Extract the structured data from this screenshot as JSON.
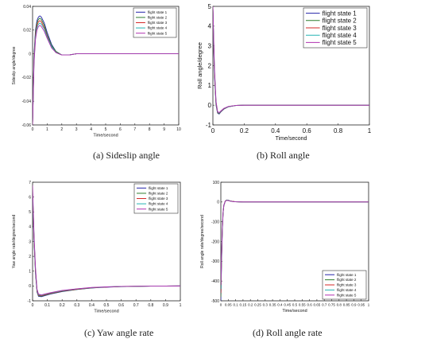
{
  "legend_entries": [
    "flight state 1",
    "flight state 2",
    "flight state 3",
    "flight state 4",
    "flight state 5"
  ],
  "series_colors": [
    "#2323a8",
    "#2e7d2e",
    "#d42a2a",
    "#25b3b3",
    "#b030b0"
  ],
  "captions": {
    "a": "(a) Sideslip angle",
    "b": "(b) Roll angle",
    "c": "(c) Yaw angle rate",
    "d": "(d) Roll angle rate"
  },
  "chart_data": [
    {
      "id": "a",
      "type": "line",
      "title": "",
      "xlabel": "Time/second",
      "ylabel": "Sideslip angle/degree",
      "xlim": [
        0,
        10
      ],
      "ylim": [
        -0.06,
        0.04
      ],
      "xticks": [
        "0",
        "1",
        "2",
        "3",
        "4",
        "5",
        "6",
        "7",
        "8",
        "9",
        "10"
      ],
      "yticks": [
        "-0.06",
        "-0.04",
        "-0.02",
        "0",
        "0.02",
        "0.04"
      ],
      "legend_position": "top-right",
      "grid": false,
      "series": [
        {
          "name": "flight state 1",
          "x": [
            0,
            0.1,
            0.2,
            0.3,
            0.4,
            0.5,
            0.6,
            0.8,
            1.0,
            1.3,
            1.6,
            2.0,
            2.5,
            3,
            4,
            6,
            8,
            10
          ],
          "y": [
            -0.06,
            0.0,
            0.02,
            0.028,
            0.031,
            0.032,
            0.031,
            0.026,
            0.018,
            0.008,
            0.002,
            -0.001,
            -0.001,
            0,
            0,
            0,
            0,
            0
          ]
        },
        {
          "name": "flight state 2",
          "x": [
            0,
            0.1,
            0.2,
            0.3,
            0.4,
            0.5,
            0.6,
            0.8,
            1.0,
            1.3,
            1.6,
            2.0,
            2.5,
            3,
            4,
            6,
            8,
            10
          ],
          "y": [
            -0.06,
            -0.002,
            0.018,
            0.026,
            0.029,
            0.03,
            0.029,
            0.024,
            0.016,
            0.007,
            0.002,
            -0.001,
            -0.001,
            0,
            0,
            0,
            0,
            0
          ]
        },
        {
          "name": "flight state 3",
          "x": [
            0,
            0.1,
            0.2,
            0.3,
            0.4,
            0.5,
            0.6,
            0.8,
            1.0,
            1.3,
            1.6,
            2.0,
            2.5,
            3,
            4,
            6,
            8,
            10
          ],
          "y": [
            -0.06,
            -0.004,
            0.016,
            0.024,
            0.027,
            0.028,
            0.027,
            0.022,
            0.015,
            0.006,
            0.001,
            -0.001,
            -0.001,
            0,
            0,
            0,
            0,
            0
          ]
        },
        {
          "name": "flight state 4",
          "x": [
            0,
            0.1,
            0.2,
            0.3,
            0.4,
            0.5,
            0.6,
            0.8,
            1.0,
            1.3,
            1.6,
            2.0,
            2.5,
            3,
            4,
            6,
            8,
            10
          ],
          "y": [
            -0.06,
            -0.006,
            0.014,
            0.022,
            0.025,
            0.026,
            0.025,
            0.021,
            0.014,
            0.006,
            0.001,
            -0.001,
            -0.001,
            0,
            0,
            0,
            0,
            0
          ]
        },
        {
          "name": "flight state 5",
          "x": [
            0,
            0.1,
            0.2,
            0.3,
            0.4,
            0.5,
            0.6,
            0.8,
            1.0,
            1.3,
            1.6,
            2.0,
            2.5,
            3,
            4,
            6,
            8,
            10
          ],
          "y": [
            -0.06,
            -0.008,
            0.012,
            0.02,
            0.023,
            0.024,
            0.023,
            0.019,
            0.013,
            0.005,
            0.001,
            -0.001,
            -0.001,
            0,
            0,
            0,
            0,
            0
          ]
        }
      ]
    },
    {
      "id": "b",
      "type": "line",
      "title": "",
      "xlabel": "Time/second",
      "ylabel": "Roll angle/degree",
      "xlim": [
        0,
        1
      ],
      "ylim": [
        -1,
        5
      ],
      "xticks": [
        "0",
        "0.2",
        "0.4",
        "0.6",
        "0.8",
        "1"
      ],
      "yticks": [
        "-1",
        "0",
        "1",
        "2",
        "3",
        "4",
        "5"
      ],
      "legend_position": "top-right",
      "grid": false,
      "series": [
        {
          "name": "flight state 1",
          "x": [
            0,
            0.005,
            0.01,
            0.02,
            0.03,
            0.04,
            0.05,
            0.07,
            0.1,
            0.15,
            0.2,
            0.3,
            0.5,
            1
          ],
          "y": [
            5,
            3.0,
            1.5,
            0.0,
            -0.4,
            -0.45,
            -0.35,
            -0.2,
            -0.08,
            -0.01,
            0,
            0,
            0,
            0
          ]
        },
        {
          "name": "flight state 2",
          "x": [
            0,
            0.005,
            0.01,
            0.02,
            0.03,
            0.04,
            0.05,
            0.07,
            0.1,
            0.15,
            0.2,
            0.3,
            0.5,
            1
          ],
          "y": [
            5,
            3.1,
            1.6,
            0.05,
            -0.38,
            -0.43,
            -0.33,
            -0.19,
            -0.08,
            -0.01,
            0,
            0,
            0,
            0
          ]
        },
        {
          "name": "flight state 3",
          "x": [
            0,
            0.005,
            0.01,
            0.02,
            0.03,
            0.04,
            0.05,
            0.07,
            0.1,
            0.15,
            0.2,
            0.3,
            0.5,
            1
          ],
          "y": [
            5,
            3.2,
            1.7,
            0.1,
            -0.36,
            -0.41,
            -0.32,
            -0.18,
            -0.07,
            -0.01,
            0,
            0,
            0,
            0
          ]
        },
        {
          "name": "flight state 4",
          "x": [
            0,
            0.005,
            0.01,
            0.02,
            0.03,
            0.04,
            0.05,
            0.07,
            0.1,
            0.15,
            0.2,
            0.3,
            0.5,
            1
          ],
          "y": [
            5,
            3.3,
            1.8,
            0.15,
            -0.34,
            -0.4,
            -0.31,
            -0.17,
            -0.07,
            -0.01,
            0,
            0,
            0,
            0
          ]
        },
        {
          "name": "flight state 5",
          "x": [
            0,
            0.005,
            0.01,
            0.02,
            0.03,
            0.04,
            0.05,
            0.07,
            0.1,
            0.15,
            0.2,
            0.3,
            0.5,
            1
          ],
          "y": [
            5,
            3.4,
            1.9,
            0.2,
            -0.32,
            -0.38,
            -0.3,
            -0.16,
            -0.06,
            -0.01,
            0,
            0,
            0,
            0
          ]
        }
      ]
    },
    {
      "id": "c",
      "type": "line",
      "title": "",
      "xlabel": "Time/second",
      "ylabel": "Yaw angle rate/degree/second",
      "xlim": [
        0,
        1
      ],
      "ylim": [
        -1,
        7
      ],
      "xticks": [
        "0",
        "0.1",
        "0.2",
        "0.3",
        "0.4",
        "0.5",
        "0.6",
        "0.7",
        "0.8",
        "0.9",
        "1"
      ],
      "yticks": [
        "-1",
        "0",
        "1",
        "2",
        "3",
        "4",
        "5",
        "6",
        "7"
      ],
      "legend_position": "top-right",
      "grid": false,
      "series": [
        {
          "name": "flight state 1",
          "x": [
            0,
            0.01,
            0.02,
            0.03,
            0.04,
            0.06,
            0.08,
            0.12,
            0.2,
            0.3,
            0.4,
            0.5,
            0.6,
            0.8,
            1
          ],
          "y": [
            6.2,
            3.0,
            0.8,
            -0.4,
            -0.7,
            -0.72,
            -0.66,
            -0.55,
            -0.38,
            -0.24,
            -0.14,
            -0.08,
            -0.04,
            -0.01,
            0
          ]
        },
        {
          "name": "flight state 2",
          "x": [
            0,
            0.01,
            0.02,
            0.03,
            0.04,
            0.06,
            0.08,
            0.12,
            0.2,
            0.3,
            0.4,
            0.5,
            0.6,
            0.8,
            1
          ],
          "y": [
            6.3,
            3.1,
            0.9,
            -0.35,
            -0.66,
            -0.69,
            -0.63,
            -0.52,
            -0.36,
            -0.23,
            -0.13,
            -0.07,
            -0.04,
            -0.01,
            0
          ]
        },
        {
          "name": "flight state 3",
          "x": [
            0,
            0.01,
            0.02,
            0.03,
            0.04,
            0.06,
            0.08,
            0.12,
            0.2,
            0.3,
            0.4,
            0.5,
            0.6,
            0.8,
            1
          ],
          "y": [
            6.4,
            3.2,
            1.0,
            -0.3,
            -0.62,
            -0.66,
            -0.6,
            -0.5,
            -0.34,
            -0.22,
            -0.12,
            -0.07,
            -0.03,
            -0.01,
            0
          ]
        },
        {
          "name": "flight state 4",
          "x": [
            0,
            0.01,
            0.02,
            0.03,
            0.04,
            0.06,
            0.08,
            0.12,
            0.2,
            0.3,
            0.4,
            0.5,
            0.6,
            0.8,
            1
          ],
          "y": [
            6.5,
            3.3,
            1.1,
            -0.25,
            -0.58,
            -0.63,
            -0.57,
            -0.47,
            -0.32,
            -0.2,
            -0.11,
            -0.06,
            -0.03,
            -0.01,
            0
          ]
        },
        {
          "name": "flight state 5",
          "x": [
            0,
            0.01,
            0.02,
            0.03,
            0.04,
            0.06,
            0.08,
            0.12,
            0.2,
            0.3,
            0.4,
            0.5,
            0.6,
            0.8,
            1
          ],
          "y": [
            6.8,
            3.4,
            1.2,
            -0.2,
            -0.55,
            -0.6,
            -0.55,
            -0.45,
            -0.3,
            -0.19,
            -0.1,
            -0.06,
            -0.03,
            -0.01,
            0
          ]
        }
      ]
    },
    {
      "id": "d",
      "type": "line",
      "title": "",
      "xlabel": "Time/second",
      "ylabel": "Roll angle rate/degree/second",
      "xlim": [
        0,
        1
      ],
      "ylim": [
        -500,
        100
      ],
      "xticks": [
        "0",
        "0.05",
        "0.1",
        "0.15",
        "0.2",
        "0.25",
        "0.3",
        "0.35",
        "0.4",
        "0.45",
        "0.5",
        "0.55",
        "0.6",
        "0.65",
        "0.7",
        "0.75",
        "0.8",
        "0.85",
        "0.9",
        "0.95",
        "1"
      ],
      "yticks": [
        "-500",
        "-400",
        "-300",
        "-200",
        "-100",
        "0",
        "100"
      ],
      "legend_position": "bottom-right",
      "grid": false,
      "series": [
        {
          "name": "flight state 1",
          "x": [
            0,
            0.005,
            0.01,
            0.015,
            0.02,
            0.03,
            0.04,
            0.05,
            0.06,
            0.08,
            0.1,
            0.15,
            0.2,
            0.3,
            0.5,
            1
          ],
          "y": [
            -500,
            -300,
            -150,
            -60,
            -20,
            5,
            10,
            9,
            6,
            3,
            1,
            0,
            0,
            0,
            0,
            0
          ]
        },
        {
          "name": "flight state 2",
          "x": [
            0,
            0.005,
            0.01,
            0.015,
            0.02,
            0.03,
            0.04,
            0.05,
            0.06,
            0.08,
            0.1,
            0.15,
            0.2,
            0.3,
            0.5,
            1
          ],
          "y": [
            -480,
            -290,
            -145,
            -58,
            -19,
            5,
            10,
            9,
            6,
            3,
            1,
            0,
            0,
            0,
            0,
            0
          ]
        },
        {
          "name": "flight state 3",
          "x": [
            0,
            0.005,
            0.01,
            0.015,
            0.02,
            0.03,
            0.04,
            0.05,
            0.06,
            0.08,
            0.1,
            0.15,
            0.2,
            0.3,
            0.5,
            1
          ],
          "y": [
            -460,
            -280,
            -140,
            -56,
            -18,
            5,
            9,
            8,
            5,
            3,
            1,
            0,
            0,
            0,
            0,
            0
          ]
        },
        {
          "name": "flight state 4",
          "x": [
            0,
            0.005,
            0.01,
            0.015,
            0.02,
            0.03,
            0.04,
            0.05,
            0.06,
            0.08,
            0.1,
            0.15,
            0.2,
            0.3,
            0.5,
            1
          ],
          "y": [
            -440,
            -270,
            -135,
            -54,
            -17,
            4,
            9,
            8,
            5,
            2,
            1,
            0,
            0,
            0,
            0,
            0
          ]
        },
        {
          "name": "flight state 5",
          "x": [
            0,
            0.005,
            0.01,
            0.015,
            0.02,
            0.03,
            0.04,
            0.05,
            0.06,
            0.08,
            0.1,
            0.15,
            0.2,
            0.3,
            0.5,
            1
          ],
          "y": [
            -420,
            -260,
            -130,
            -52,
            -16,
            4,
            8,
            7,
            5,
            2,
            1,
            0,
            0,
            0,
            0,
            0
          ]
        }
      ]
    }
  ]
}
